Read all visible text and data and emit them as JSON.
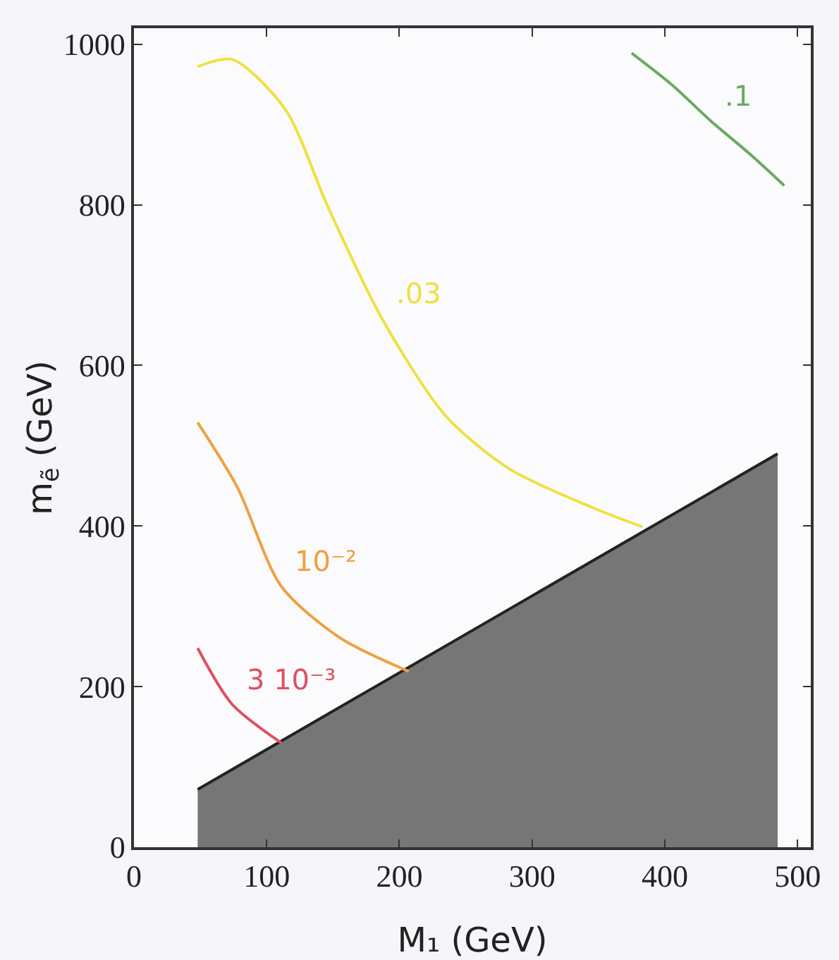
{
  "chart_data": {
    "type": "line",
    "xlabel": "M₁ (GeV)",
    "ylabel": "m$_{ẽ}$ (GeV)",
    "xlim": [
      0,
      510
    ],
    "xticks": [
      0,
      100,
      200,
      300,
      400,
      500
    ],
    "ylim": [
      0,
      1020
    ],
    "yticks": [
      0,
      200,
      400,
      600,
      800,
      1000
    ],
    "grid": false,
    "legend": false,
    "marker": "none",
    "line_style": "solid",
    "series": [
      {
        "type": "area",
        "color": "#767676",
        "x": [
          48,
          485
        ],
        "values": [
          72,
          490
        ]
      },
      {
        "name": ".1",
        "color": "#6aaa60",
        "x": [
          375,
          405,
          435,
          465,
          490
        ],
        "values": [
          989,
          950,
          904,
          862,
          824
        ]
      },
      {
        "name": ".03",
        "color": "#f0e040",
        "x": [
          48,
          74,
          114,
          146,
          187,
          235,
          283,
          347,
          383
        ],
        "values": [
          972,
          981,
          919,
          798,
          658,
          537,
          471,
          422,
          399
        ]
      },
      {
        "name": "10⁻²",
        "color": "#f0a040",
        "x": [
          48,
          78,
          111,
          155,
          207
        ],
        "values": [
          529,
          448,
          325,
          261,
          219
        ]
      },
      {
        "name": "3 10⁻³",
        "color": "#e05060",
        "x": [
          48,
          74,
          111
        ],
        "values": [
          248,
          178,
          130
        ]
      }
    ]
  }
}
